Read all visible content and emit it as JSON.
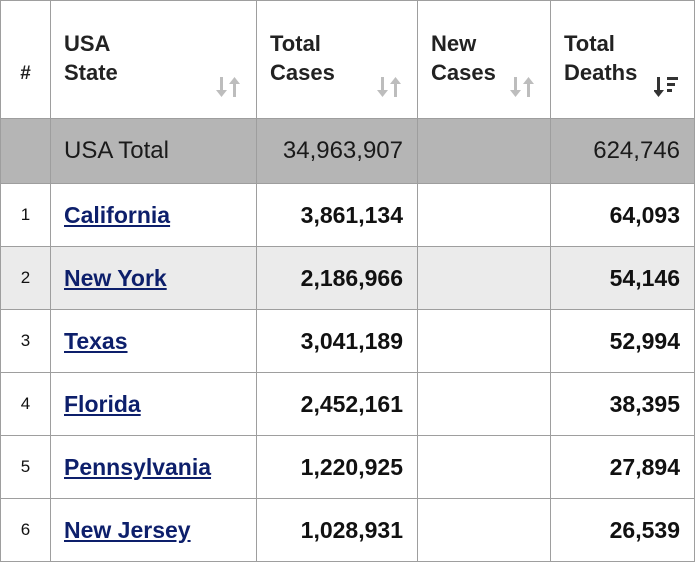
{
  "header": {
    "rank": "#",
    "state_line1": "USA",
    "state_line2": "State",
    "total_cases_line1": "Total",
    "total_cases_line2": "Cases",
    "new_cases_line1": "New",
    "new_cases_line2": "Cases",
    "total_deaths_line1": "Total",
    "total_deaths_line2": "Deaths"
  },
  "total_row": {
    "label": "USA Total",
    "total_cases": "34,963,907",
    "new_cases": "",
    "total_deaths": "624,746"
  },
  "rows": [
    {
      "rank": "1",
      "state": "California",
      "total_cases": "3,861,134",
      "new_cases": "",
      "total_deaths": "64,093"
    },
    {
      "rank": "2",
      "state": "New York",
      "total_cases": "2,186,966",
      "new_cases": "",
      "total_deaths": "54,146"
    },
    {
      "rank": "3",
      "state": "Texas",
      "total_cases": "3,041,189",
      "new_cases": "",
      "total_deaths": "52,994"
    },
    {
      "rank": "4",
      "state": "Florida",
      "total_cases": "2,452,161",
      "new_cases": "",
      "total_deaths": "38,395"
    },
    {
      "rank": "5",
      "state": "Pennsylvania",
      "total_cases": "1,220,925",
      "new_cases": "",
      "total_deaths": "27,894"
    },
    {
      "rank": "6",
      "state": "New Jersey",
      "total_cases": "1,028,931",
      "new_cases": "",
      "total_deaths": "26,539"
    }
  ],
  "icons": {
    "sort_unsorted": "sort-up-down-icon",
    "sort_active_desc": "sort-descending-icon"
  },
  "colors": {
    "link": "#0d1f6b",
    "total_row_bg": "#b5b5b5",
    "alt_row_bg": "#ebebeb",
    "border": "#9e9e9e",
    "sort_icon_inactive": "#bdbdbd",
    "sort_icon_active": "#333333"
  }
}
